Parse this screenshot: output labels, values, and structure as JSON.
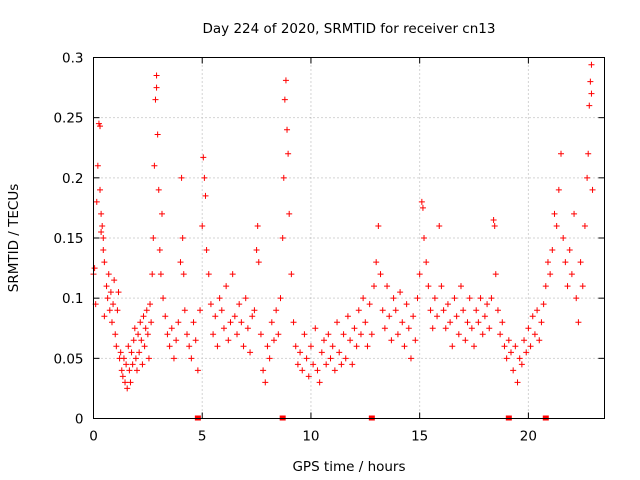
{
  "chart_data": {
    "type": "scatter",
    "title": "Day 224 of 2020, SRMTID for receiver cn13",
    "xlabel": "GPS time / hours",
    "ylabel": "SRMTID / TECUs",
    "xlim": [
      0,
      23.5
    ],
    "ylim": [
      0,
      0.3
    ],
    "xticks": [
      0,
      5,
      10,
      15,
      20
    ],
    "xtick_labels": [
      "0",
      "5",
      "10",
      "15",
      "20"
    ],
    "yticks": [
      0,
      0.05,
      0.1,
      0.15,
      0.2,
      0.25,
      0.3
    ],
    "ytick_labels": [
      "0",
      "0.05",
      "0.1",
      "0.15",
      "0.2",
      "0.25",
      "0.3"
    ],
    "grid": true,
    "marker": "+",
    "color": "#ff0000",
    "series": [
      {
        "name": "SRMTID",
        "points": [
          [
            0.0,
            0.12
          ],
          [
            0.05,
            0.125
          ],
          [
            0.1,
            0.095
          ],
          [
            0.15,
            0.18
          ],
          [
            0.2,
            0.21
          ],
          [
            0.25,
            0.245
          ],
          [
            0.3,
            0.243
          ],
          [
            0.3,
            0.19
          ],
          [
            0.35,
            0.17
          ],
          [
            0.35,
            0.155
          ],
          [
            0.4,
            0.16
          ],
          [
            0.45,
            0.15
          ],
          [
            0.45,
            0.14
          ],
          [
            0.5,
            0.13
          ],
          [
            0.5,
            0.085
          ],
          [
            0.6,
            0.11
          ],
          [
            0.65,
            0.1
          ],
          [
            0.7,
            0.12
          ],
          [
            0.75,
            0.09
          ],
          [
            0.8,
            0.105
          ],
          [
            0.85,
            0.08
          ],
          [
            0.9,
            0.095
          ],
          [
            0.95,
            0.115
          ],
          [
            1.0,
            0.07
          ],
          [
            1.05,
            0.06
          ],
          [
            1.1,
            0.09
          ],
          [
            1.15,
            0.105
          ],
          [
            1.2,
            0.05
          ],
          [
            1.25,
            0.055
          ],
          [
            1.3,
            0.04
          ],
          [
            1.35,
            0.035
          ],
          [
            1.4,
            0.05
          ],
          [
            1.45,
            0.03
          ],
          [
            1.5,
            0.045
          ],
          [
            1.55,
            0.025
          ],
          [
            1.6,
            0.06
          ],
          [
            1.65,
            0.04
          ],
          [
            1.7,
            0.03
          ],
          [
            1.75,
            0.055
          ],
          [
            1.8,
            0.045
          ],
          [
            1.85,
            0.065
          ],
          [
            1.9,
            0.075
          ],
          [
            1.95,
            0.05
          ],
          [
            2.0,
            0.04
          ],
          [
            2.05,
            0.07
          ],
          [
            2.1,
            0.055
          ],
          [
            2.15,
            0.08
          ],
          [
            2.2,
            0.065
          ],
          [
            2.25,
            0.045
          ],
          [
            2.3,
            0.085
          ],
          [
            2.35,
            0.06
          ],
          [
            2.4,
            0.075
          ],
          [
            2.45,
            0.09
          ],
          [
            2.5,
            0.07
          ],
          [
            2.55,
            0.05
          ],
          [
            2.6,
            0.095
          ],
          [
            2.65,
            0.08
          ],
          [
            2.7,
            0.12
          ],
          [
            2.75,
            0.15
          ],
          [
            2.8,
            0.21
          ],
          [
            2.85,
            0.265
          ],
          [
            2.9,
            0.285
          ],
          [
            2.9,
            0.275
          ],
          [
            2.95,
            0.236
          ],
          [
            3.0,
            0.19
          ],
          [
            3.05,
            0.14
          ],
          [
            3.1,
            0.12
          ],
          [
            3.15,
            0.17
          ],
          [
            3.2,
            0.1
          ],
          [
            3.3,
            0.085
          ],
          [
            3.4,
            0.07
          ],
          [
            3.5,
            0.06
          ],
          [
            3.6,
            0.075
          ],
          [
            3.7,
            0.05
          ],
          [
            3.8,
            0.065
          ],
          [
            3.9,
            0.08
          ],
          [
            4.0,
            0.13
          ],
          [
            4.05,
            0.2
          ],
          [
            4.1,
            0.15
          ],
          [
            4.15,
            0.12
          ],
          [
            4.2,
            0.09
          ],
          [
            4.3,
            0.07
          ],
          [
            4.4,
            0.06
          ],
          [
            4.5,
            0.05
          ],
          [
            4.6,
            0.08
          ],
          [
            4.7,
            0.065
          ],
          [
            4.8,
            0.04
          ],
          [
            4.9,
            0.09
          ],
          [
            5.0,
            0.16
          ],
          [
            5.05,
            0.217
          ],
          [
            5.1,
            0.2
          ],
          [
            5.15,
            0.185
          ],
          [
            5.2,
            0.14
          ],
          [
            5.3,
            0.12
          ],
          [
            5.4,
            0.095
          ],
          [
            5.5,
            0.07
          ],
          [
            5.6,
            0.085
          ],
          [
            5.7,
            0.06
          ],
          [
            5.8,
            0.1
          ],
          [
            5.9,
            0.09
          ],
          [
            6.0,
            0.075
          ],
          [
            6.1,
            0.11
          ],
          [
            6.2,
            0.065
          ],
          [
            6.3,
            0.08
          ],
          [
            6.4,
            0.12
          ],
          [
            6.5,
            0.085
          ],
          [
            6.6,
            0.07
          ],
          [
            6.7,
            0.095
          ],
          [
            6.8,
            0.08
          ],
          [
            6.9,
            0.06
          ],
          [
            7.0,
            0.1
          ],
          [
            7.1,
            0.075
          ],
          [
            7.2,
            0.055
          ],
          [
            7.3,
            0.085
          ],
          [
            7.4,
            0.09
          ],
          [
            7.5,
            0.14
          ],
          [
            7.55,
            0.16
          ],
          [
            7.6,
            0.13
          ],
          [
            7.7,
            0.07
          ],
          [
            7.8,
            0.04
          ],
          [
            7.9,
            0.03
          ],
          [
            8.0,
            0.06
          ],
          [
            8.1,
            0.05
          ],
          [
            8.2,
            0.08
          ],
          [
            8.3,
            0.065
          ],
          [
            8.4,
            0.09
          ],
          [
            8.5,
            0.07
          ],
          [
            8.6,
            0.1
          ],
          [
            8.7,
            0.15
          ],
          [
            8.75,
            0.2
          ],
          [
            8.8,
            0.265
          ],
          [
            8.85,
            0.281
          ],
          [
            8.9,
            0.24
          ],
          [
            8.95,
            0.22
          ],
          [
            9.0,
            0.17
          ],
          [
            9.1,
            0.12
          ],
          [
            9.2,
            0.08
          ],
          [
            9.3,
            0.06
          ],
          [
            9.4,
            0.045
          ],
          [
            9.5,
            0.055
          ],
          [
            9.6,
            0.04
          ],
          [
            9.7,
            0.07
          ],
          [
            9.8,
            0.05
          ],
          [
            9.9,
            0.035
          ],
          [
            10.0,
            0.06
          ],
          [
            10.1,
            0.045
          ],
          [
            10.2,
            0.075
          ],
          [
            10.3,
            0.04
          ],
          [
            10.4,
            0.03
          ],
          [
            10.5,
            0.055
          ],
          [
            10.6,
            0.065
          ],
          [
            10.7,
            0.045
          ],
          [
            10.8,
            0.07
          ],
          [
            10.9,
            0.05
          ],
          [
            11.0,
            0.06
          ],
          [
            11.1,
            0.04
          ],
          [
            11.2,
            0.08
          ],
          [
            11.3,
            0.055
          ],
          [
            11.4,
            0.045
          ],
          [
            11.5,
            0.07
          ],
          [
            11.6,
            0.05
          ],
          [
            11.7,
            0.085
          ],
          [
            11.8,
            0.065
          ],
          [
            11.9,
            0.045
          ],
          [
            12.0,
            0.075
          ],
          [
            12.1,
            0.06
          ],
          [
            12.2,
            0.09
          ],
          [
            12.3,
            0.07
          ],
          [
            12.4,
            0.1
          ],
          [
            12.5,
            0.08
          ],
          [
            12.6,
            0.06
          ],
          [
            12.7,
            0.095
          ],
          [
            12.8,
            0.07
          ],
          [
            12.9,
            0.11
          ],
          [
            13.0,
            0.13
          ],
          [
            13.1,
            0.16
          ],
          [
            13.2,
            0.12
          ],
          [
            13.3,
            0.09
          ],
          [
            13.4,
            0.075
          ],
          [
            13.5,
            0.11
          ],
          [
            13.6,
            0.085
          ],
          [
            13.7,
            0.065
          ],
          [
            13.8,
            0.1
          ],
          [
            13.9,
            0.09
          ],
          [
            14.0,
            0.07
          ],
          [
            14.1,
            0.105
          ],
          [
            14.2,
            0.08
          ],
          [
            14.3,
            0.06
          ],
          [
            14.4,
            0.095
          ],
          [
            14.5,
            0.075
          ],
          [
            14.6,
            0.05
          ],
          [
            14.7,
            0.085
          ],
          [
            14.8,
            0.065
          ],
          [
            14.9,
            0.1
          ],
          [
            15.0,
            0.12
          ],
          [
            15.1,
            0.18
          ],
          [
            15.15,
            0.175
          ],
          [
            15.2,
            0.15
          ],
          [
            15.3,
            0.13
          ],
          [
            15.4,
            0.11
          ],
          [
            15.5,
            0.09
          ],
          [
            15.6,
            0.075
          ],
          [
            15.7,
            0.1
          ],
          [
            15.8,
            0.085
          ],
          [
            15.9,
            0.16
          ],
          [
            16.0,
            0.11
          ],
          [
            16.1,
            0.09
          ],
          [
            16.2,
            0.075
          ],
          [
            16.3,
            0.095
          ],
          [
            16.4,
            0.08
          ],
          [
            16.5,
            0.06
          ],
          [
            16.6,
            0.1
          ],
          [
            16.7,
            0.085
          ],
          [
            16.8,
            0.07
          ],
          [
            16.9,
            0.11
          ],
          [
            17.0,
            0.09
          ],
          [
            17.1,
            0.065
          ],
          [
            17.2,
            0.08
          ],
          [
            17.3,
            0.1
          ],
          [
            17.4,
            0.075
          ],
          [
            17.5,
            0.06
          ],
          [
            17.6,
            0.09
          ],
          [
            17.7,
            0.08
          ],
          [
            17.8,
            0.1
          ],
          [
            17.9,
            0.07
          ],
          [
            18.0,
            0.085
          ],
          [
            18.1,
            0.095
          ],
          [
            18.2,
            0.075
          ],
          [
            18.3,
            0.1
          ],
          [
            18.4,
            0.165
          ],
          [
            18.45,
            0.16
          ],
          [
            18.5,
            0.12
          ],
          [
            18.6,
            0.09
          ],
          [
            18.7,
            0.07
          ],
          [
            18.8,
            0.08
          ],
          [
            18.9,
            0.06
          ],
          [
            19.0,
            0.05
          ],
          [
            19.1,
            0.065
          ],
          [
            19.2,
            0.055
          ],
          [
            19.3,
            0.04
          ],
          [
            19.4,
            0.06
          ],
          [
            19.5,
            0.03
          ],
          [
            19.6,
            0.05
          ],
          [
            19.7,
            0.045
          ],
          [
            19.8,
            0.065
          ],
          [
            19.9,
            0.055
          ],
          [
            20.0,
            0.075
          ],
          [
            20.1,
            0.06
          ],
          [
            20.2,
            0.085
          ],
          [
            20.3,
            0.07
          ],
          [
            20.4,
            0.09
          ],
          [
            20.5,
            0.065
          ],
          [
            20.6,
            0.08
          ],
          [
            20.7,
            0.095
          ],
          [
            20.8,
            0.11
          ],
          [
            20.9,
            0.13
          ],
          [
            21.0,
            0.12
          ],
          [
            21.1,
            0.14
          ],
          [
            21.2,
            0.17
          ],
          [
            21.3,
            0.16
          ],
          [
            21.4,
            0.19
          ],
          [
            21.5,
            0.22
          ],
          [
            21.6,
            0.15
          ],
          [
            21.7,
            0.13
          ],
          [
            21.8,
            0.11
          ],
          [
            21.9,
            0.14
          ],
          [
            22.0,
            0.12
          ],
          [
            22.1,
            0.17
          ],
          [
            22.2,
            0.1
          ],
          [
            22.3,
            0.08
          ],
          [
            22.4,
            0.13
          ],
          [
            22.5,
            0.11
          ],
          [
            22.6,
            0.16
          ],
          [
            22.7,
            0.2
          ],
          [
            22.75,
            0.22
          ],
          [
            22.8,
            0.26
          ],
          [
            22.85,
            0.28
          ],
          [
            22.9,
            0.294
          ],
          [
            22.9,
            0.27
          ],
          [
            22.95,
            0.19
          ]
        ]
      }
    ],
    "bottom_markers": [
      4.8,
      8.7,
      12.8,
      19.1,
      20.8
    ]
  }
}
